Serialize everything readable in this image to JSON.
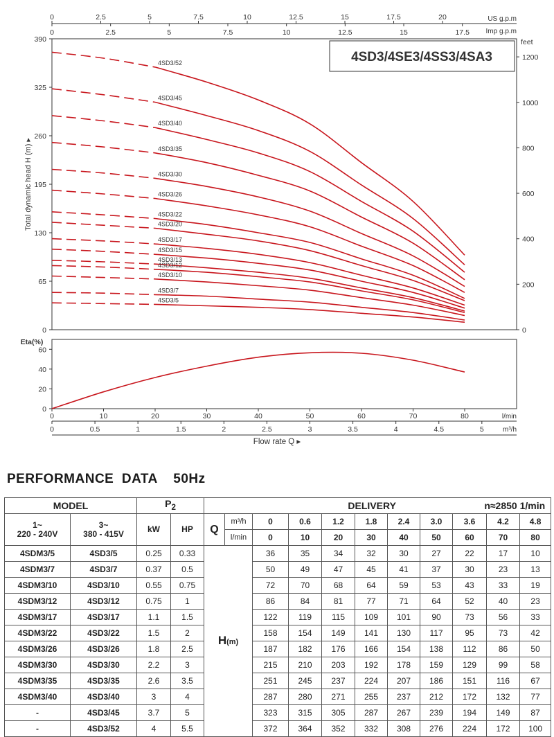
{
  "chart_data": [
    {
      "type": "line",
      "title": "4SD3/4SE3/4SS3/4SA3",
      "ylabel": "Total dynamic head H (m) ▸",
      "ylim": [
        0,
        390
      ],
      "yticks": [
        0,
        65,
        130,
        195,
        260,
        325,
        390
      ],
      "y2label": "feet",
      "y2ticks": [
        0,
        200,
        400,
        600,
        800,
        1000,
        1200
      ],
      "top_axis_us": {
        "label": "US g.p.m",
        "ticks": [
          "0",
          "2.5",
          "5",
          "7.5",
          "10",
          "12.5",
          "15",
          "17.5",
          "20"
        ]
      },
      "top_axis_imp": {
        "label": "Imp g.p.m",
        "ticks": [
          "0",
          "2.5",
          "5",
          "7.5",
          "10",
          "12.5",
          "15",
          "17.5"
        ]
      },
      "x_lmin": [
        0,
        10,
        20,
        30,
        40,
        50,
        60,
        70,
        80
      ],
      "dashed_until_lmin": 20,
      "series": [
        {
          "name": "4SD3/52",
          "values": [
            372,
            364,
            352,
            332,
            308,
            276,
            224,
            172,
            100
          ]
        },
        {
          "name": "4SD3/45",
          "values": [
            323,
            315,
            305,
            287,
            267,
            239,
            194,
            149,
            87
          ]
        },
        {
          "name": "4SD3/40",
          "values": [
            287,
            280,
            271,
            255,
            237,
            212,
            172,
            132,
            77
          ]
        },
        {
          "name": "4SD3/35",
          "values": [
            251,
            245,
            237,
            224,
            207,
            186,
            151,
            116,
            67
          ]
        },
        {
          "name": "4SD3/30",
          "values": [
            215,
            210,
            203,
            192,
            178,
            159,
            129,
            99,
            58
          ]
        },
        {
          "name": "4SD3/26",
          "values": [
            187,
            182,
            176,
            166,
            154,
            138,
            112,
            86,
            50
          ]
        },
        {
          "name": "4SD3/22",
          "values": [
            158,
            154,
            149,
            141,
            130,
            117,
            95,
            73,
            42
          ]
        },
        {
          "name": "4SD3/20",
          "values": [
            144,
            140,
            136,
            128,
            119,
            106,
            86,
            66,
            39
          ]
        },
        {
          "name": "4SD3/17",
          "values": [
            122,
            119,
            115,
            109,
            101,
            90,
            73,
            56,
            33
          ]
        },
        {
          "name": "4SD3/15",
          "values": [
            108,
            105,
            101,
            96,
            89,
            80,
            65,
            50,
            29
          ]
        },
        {
          "name": "4SD3/13",
          "values": [
            93,
            91,
            88,
            83,
            77,
            69,
            56,
            43,
            25
          ]
        },
        {
          "name": "4SD3/12",
          "values": [
            86,
            84,
            81,
            77,
            71,
            64,
            52,
            40,
            23
          ]
        },
        {
          "name": "4SD3/10",
          "values": [
            72,
            70,
            68,
            64,
            59,
            53,
            43,
            33,
            19
          ]
        },
        {
          "name": "4SD3/7",
          "values": [
            50,
            49,
            47,
            45,
            41,
            37,
            30,
            23,
            13
          ]
        },
        {
          "name": "4SD3/5",
          "values": [
            36,
            35,
            34,
            32,
            30,
            27,
            22,
            17,
            10
          ]
        }
      ],
      "line_color": "#c8161d"
    },
    {
      "type": "line",
      "ylabel": "Eta(%)",
      "ylim": [
        0,
        70
      ],
      "yticks": [
        0,
        20,
        40,
        60
      ],
      "xlabel": "Flow rate Q ▸",
      "x_lmin_label": "l/min",
      "x_m3h_label": "m³/h",
      "x_lmin_ticks": [
        "0",
        "10",
        "20",
        "30",
        "40",
        "50",
        "60",
        "70",
        "80"
      ],
      "x_m3h_ticks": [
        "0",
        "0.5",
        "1",
        "1.5",
        "2",
        "2.5",
        "3",
        "3.5",
        "4",
        "4.5",
        "5"
      ],
      "series": [
        {
          "x": [
            0,
            10,
            20,
            30,
            40,
            50,
            60,
            70,
            80
          ],
          "values": [
            0,
            17,
            31.5,
            43,
            52,
            56.5,
            56,
            49,
            37
          ]
        }
      ],
      "line_color": "#c8161d"
    }
  ],
  "section_title": "PERFORMANCE  DATA    50Hz",
  "table": {
    "model_label": "MODEL",
    "p2_label": "P",
    "p2_sub": "2",
    "delivery_label": "DELIVERY",
    "speed_label": "n≈2850 1/min",
    "single_phase": "1~",
    "single_voltage": "220 - 240V",
    "three_phase": "3~",
    "three_voltage": "380 - 415V",
    "kw_label": "kW",
    "hp_label": "HP",
    "q_label": "Q",
    "m3h_label": "m³/h",
    "lmin_label": "l/min",
    "h_label": "H",
    "h_unit": "(m)",
    "m3h_values": [
      "0",
      "0.6",
      "1.2",
      "1.8",
      "2.4",
      "3.0",
      "3.6",
      "4.2",
      "4.8"
    ],
    "lmin_values": [
      "0",
      "10",
      "20",
      "30",
      "40",
      "50",
      "60",
      "70",
      "80"
    ],
    "rows": [
      {
        "m1": "4SDM3/5",
        "m3": "4SD3/5",
        "kw": "0.25",
        "hp": "0.33",
        "h": [
          "36",
          "35",
          "34",
          "32",
          "30",
          "27",
          "22",
          "17",
          "10"
        ]
      },
      {
        "m1": "4SDM3/7",
        "m3": "4SD3/7",
        "kw": "0.37",
        "hp": "0.5",
        "h": [
          "50",
          "49",
          "47",
          "45",
          "41",
          "37",
          "30",
          "23",
          "13"
        ]
      },
      {
        "m1": "4SDM3/10",
        "m3": "4SD3/10",
        "kw": "0.55",
        "hp": "0.75",
        "h": [
          "72",
          "70",
          "68",
          "64",
          "59",
          "53",
          "43",
          "33",
          "19"
        ]
      },
      {
        "m1": "4SDM3/12",
        "m3": "4SD3/12",
        "kw": "0.75",
        "hp": "1",
        "h": [
          "86",
          "84",
          "81",
          "77",
          "71",
          "64",
          "52",
          "40",
          "23"
        ]
      },
      {
        "m1": "4SDM3/17",
        "m3": "4SD3/17",
        "kw": "1.1",
        "hp": "1.5",
        "h": [
          "122",
          "119",
          "115",
          "109",
          "101",
          "90",
          "73",
          "56",
          "33"
        ]
      },
      {
        "m1": "4SDM3/22",
        "m3": "4SD3/22",
        "kw": "1.5",
        "hp": "2",
        "h": [
          "158",
          "154",
          "149",
          "141",
          "130",
          "117",
          "95",
          "73",
          "42"
        ]
      },
      {
        "m1": "4SDM3/26",
        "m3": "4SD3/26",
        "kw": "1.8",
        "hp": "2.5",
        "h": [
          "187",
          "182",
          "176",
          "166",
          "154",
          "138",
          "112",
          "86",
          "50"
        ]
      },
      {
        "m1": "4SDM3/30",
        "m3": "4SD3/30",
        "kw": "2.2",
        "hp": "3",
        "h": [
          "215",
          "210",
          "203",
          "192",
          "178",
          "159",
          "129",
          "99",
          "58"
        ]
      },
      {
        "m1": "4SDM3/35",
        "m3": "4SD3/35",
        "kw": "2.6",
        "hp": "3.5",
        "h": [
          "251",
          "245",
          "237",
          "224",
          "207",
          "186",
          "151",
          "116",
          "67"
        ]
      },
      {
        "m1": "4SDM3/40",
        "m3": "4SD3/40",
        "kw": "3",
        "hp": "4",
        "h": [
          "287",
          "280",
          "271",
          "255",
          "237",
          "212",
          "172",
          "132",
          "77"
        ]
      },
      {
        "m1": "-",
        "m3": "4SD3/45",
        "kw": "3.7",
        "hp": "5",
        "h": [
          "323",
          "315",
          "305",
          "287",
          "267",
          "239",
          "194",
          "149",
          "87"
        ]
      },
      {
        "m1": "-",
        "m3": "4SD3/52",
        "kw": "4",
        "hp": "5.5",
        "h": [
          "372",
          "364",
          "352",
          "332",
          "308",
          "276",
          "224",
          "172",
          "100"
        ]
      }
    ]
  }
}
